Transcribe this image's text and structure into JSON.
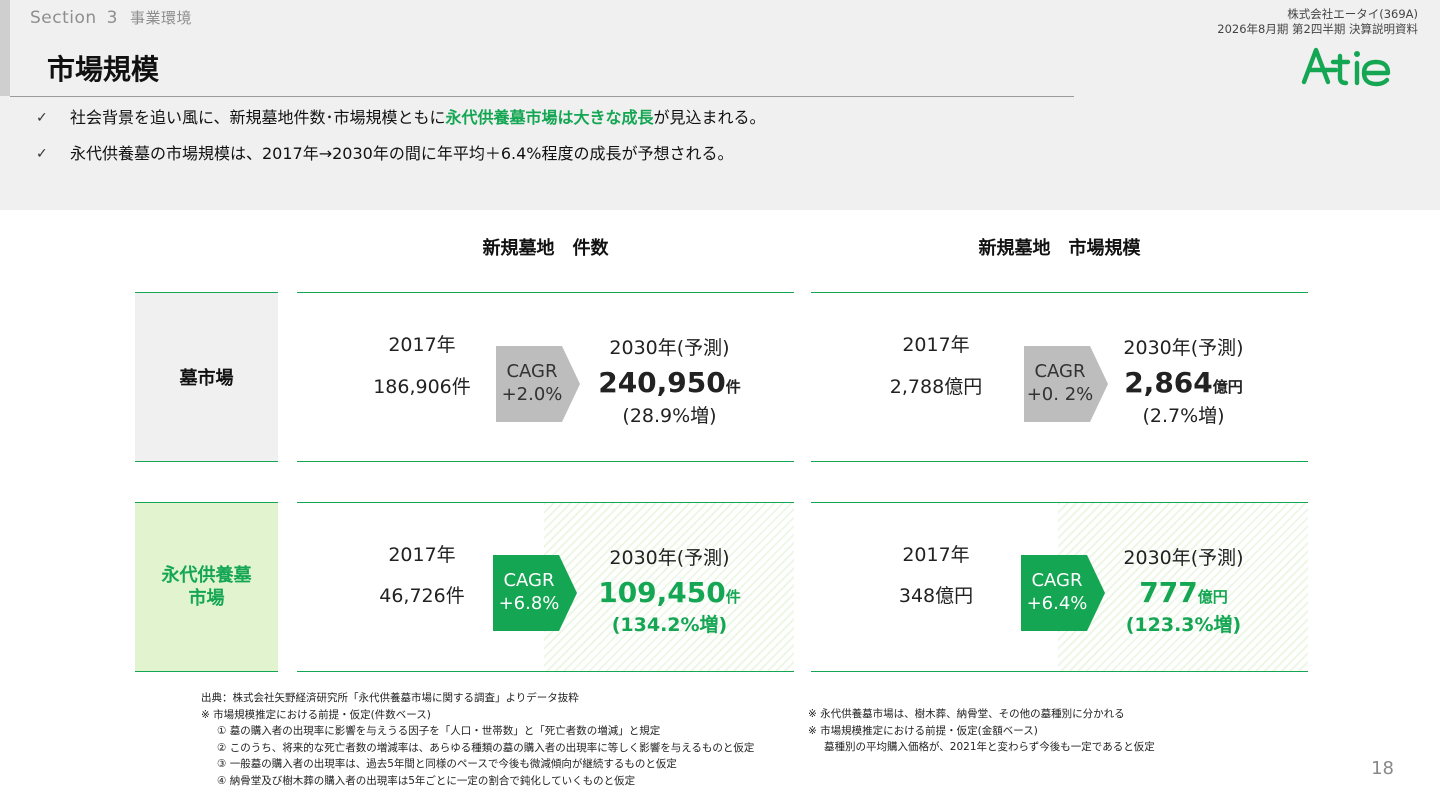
{
  "header": {
    "section_label": "Section",
    "section_number": "3",
    "section_sub": "事業環境",
    "title": "市場規模",
    "company": "株式会社エータイ(369A)",
    "report": "2026年8月期 第2四半期 決算説明資料",
    "logo_text": "A-tie",
    "logo_color": "#14a653"
  },
  "bullets": [
    {
      "check": "✓",
      "pre": "社会背景を追い風に、新規墓地件数･市場規模ともに",
      "highlight": "永代供養墓市場は大きな成長",
      "post": "が見込まれる。"
    },
    {
      "check": "✓",
      "pre": "永代供養墓の市場規模は、2017年→2030年の間に年平均＋6.4%程度の成長が予想される。",
      "highlight": "",
      "post": ""
    }
  ],
  "columns": {
    "left": "新規墓地　件数",
    "right": "新規墓地　市場規模"
  },
  "rows": {
    "grave_market": "墓市場",
    "eternal_market_line1": "永代供養墓",
    "eternal_market_line2": "市場"
  },
  "cells": {
    "grave_count": {
      "year_from": "2017年",
      "value_from": "186,906件",
      "cagr_label": "CAGR",
      "cagr_value": "+2.0%",
      "year_to": "2030年(予測)",
      "value_to": "240,950",
      "unit_to": "件",
      "growth": "(28.9%増)"
    },
    "grave_size": {
      "year_from": "2017年",
      "value_from": "2,788億円",
      "cagr_label": "CAGR",
      "cagr_value": "+0. 2%",
      "year_to": "2030年(予測)",
      "value_to": "2,864",
      "unit_to": "億円",
      "growth": "(2.7%増)"
    },
    "eternal_count": {
      "year_from": "2017年",
      "value_from": "46,726件",
      "cagr_label": "CAGR",
      "cagr_value": "+6.8%",
      "year_to": "2030年(予測)",
      "value_to": "109,450",
      "unit_to": "件",
      "growth": "(134.2%増)"
    },
    "eternal_size": {
      "year_from": "2017年",
      "value_from": "348億円",
      "cagr_label": "CAGR",
      "cagr_value": "+6.4%",
      "year_to": "2030年(予測)",
      "value_to": "777",
      "unit_to": "億円",
      "growth": "(123.3%増)"
    }
  },
  "notes_left": {
    "source": "出典：株式会社矢野経済研究所「永代供養墓市場に関する調査」よりデータ抜粋",
    "assumption_title": "※ 市場規模推定における前提・仮定(件数ベース)",
    "items": [
      "① 墓の購入者の出現率に影響を与えうる因子を「人口・世帯数」と「死亡者数の増減」と規定",
      "② このうち、将来的な死亡者数の増減率は、あらゆる種類の墓の購入者の出現率に等しく影響を与えるものと仮定",
      "③ 一般墓の購入者の出現率は、過去5年間と同様のペースで今後も微減傾向が継続するものと仮定",
      "④ 納骨堂及び樹木葬の購入者の出現率は5年ごとに一定の割合で鈍化していくものと仮定"
    ]
  },
  "notes_right": {
    "line1": "※ 永代供養墓市場は、樹木葬、納骨堂、その他の墓種別に分かれる",
    "line2": "※ 市場規模推定における前提・仮定(金額ベース)",
    "line3": "墓種別の平均購入価格が、2021年と変わらず今後も一定であると仮定"
  },
  "page_number": "18",
  "colors": {
    "accent_green": "#14a653",
    "light_green": "#e2f4cf",
    "gray_arrow": "#bdbdbd",
    "band_gray": "#f0f0f0"
  }
}
